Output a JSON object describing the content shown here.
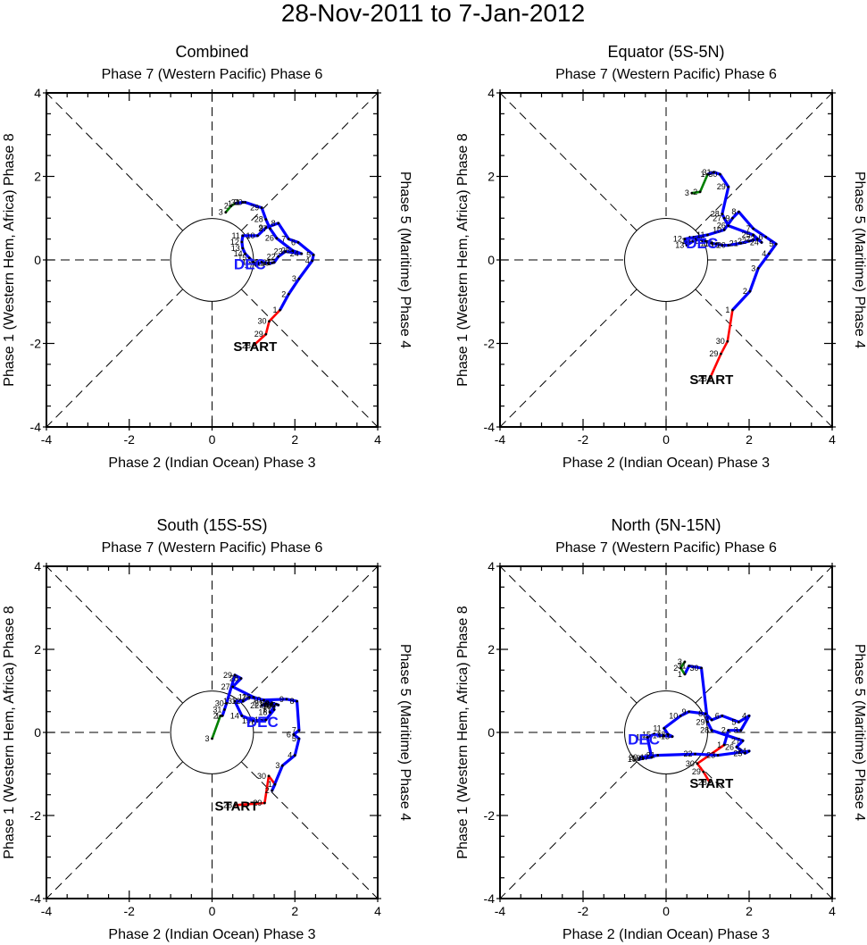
{
  "title": "28-Nov-2011 to 7-Jan-2012",
  "chart_data": [
    {
      "type": "line",
      "panel": "top-left",
      "title": "Combined",
      "top_label": "Phase 7 (Western Pacific) Phase 6",
      "bottom_label": "Phase 2 (Indian Ocean) Phase 3",
      "left_label": "Phase 1 (Western Hem, Africa) Phase 8",
      "right_label": "Phase 5 (Maritime) Phase 4",
      "xlim": [
        -4,
        4
      ],
      "ylim": [
        -4,
        4
      ],
      "xticks": [
        "-4",
        "-2",
        "0",
        "2",
        "4"
      ],
      "yticks": [
        "-4",
        "-2",
        "0",
        "2",
        "4"
      ],
      "start_label": "START",
      "month_label": "DEC",
      "series": [
        {
          "name": "Nov",
          "color": "#ff0000",
          "labels": [
            "28",
            "29",
            "30"
          ],
          "points": [
            [
              1.0,
              -2.05
            ],
            [
              1.3,
              -1.78
            ],
            [
              1.38,
              -1.47
            ]
          ]
        },
        {
          "name": "Dec",
          "color": "#0000ff",
          "labels": [
            "1",
            "2",
            "3",
            "4",
            "5",
            "6",
            "7",
            "8",
            "9",
            "10",
            "11",
            "12",
            "13",
            "14",
            "15",
            "16",
            "17",
            "18",
            "19",
            "20",
            "21",
            "22",
            "23",
            "24",
            "25",
            "26",
            "27",
            "28",
            "29",
            "30",
            "31"
          ],
          "points": [
            [
              1.64,
              -1.2
            ],
            [
              1.85,
              -0.82
            ],
            [
              2.1,
              -0.45
            ],
            [
              2.42,
              -0.02
            ],
            [
              2.45,
              0.12
            ],
            [
              2.08,
              0.42
            ],
            [
              1.85,
              0.5
            ],
            [
              1.6,
              0.88
            ],
            [
              1.3,
              0.77
            ],
            [
              1.1,
              0.58
            ],
            [
              0.74,
              0.58
            ],
            [
              0.72,
              0.43
            ],
            [
              0.74,
              0.28
            ],
            [
              0.8,
              0.15
            ],
            [
              0.9,
              0.05
            ],
            [
              1.0,
              -0.05
            ],
            [
              1.06,
              -0.13
            ],
            [
              1.2,
              -0.05
            ],
            [
              1.35,
              -0.08
            ],
            [
              1.45,
              -0.07
            ],
            [
              1.5,
              -0.06
            ],
            [
              1.6,
              0.08
            ],
            [
              1.77,
              0.2
            ],
            [
              2.16,
              0.15
            ],
            [
              1.95,
              0.22
            ],
            [
              1.56,
              0.52
            ],
            [
              1.4,
              0.75
            ],
            [
              1.3,
              0.97
            ],
            [
              1.2,
              1.25
            ],
            [
              0.8,
              1.38
            ],
            [
              0.74,
              1.38
            ]
          ]
        },
        {
          "name": "Jan",
          "color": "#008000",
          "labels": [
            "1",
            "2",
            "3"
          ],
          "points": [
            [
              0.55,
              1.35
            ],
            [
              0.46,
              1.29
            ],
            [
              0.33,
              1.14
            ]
          ]
        }
      ]
    },
    {
      "type": "line",
      "panel": "top-right",
      "title": "Equator (5S-5N)",
      "top_label": "Phase 7 (Western Pacific) Phase 6",
      "bottom_label": "Phase 2 (Indian Ocean) Phase 3",
      "left_label": "Phase 1 (Western Hem, Africa) Phase 8",
      "right_label": "Phase 5 (Maritime) Phase 4",
      "xlim": [
        -4,
        4
      ],
      "ylim": [
        -4,
        4
      ],
      "xticks": [
        "-4",
        "-2",
        "0",
        "2",
        "4"
      ],
      "yticks": [
        "-4",
        "-2",
        "0",
        "2",
        "4"
      ],
      "start_label": "START",
      "month_label": "DEC",
      "series": [
        {
          "name": "Nov",
          "color": "#ff0000",
          "labels": [
            "28",
            "29",
            "30"
          ],
          "points": [
            [
              1.05,
              -2.85
            ],
            [
              1.32,
              -2.25
            ],
            [
              1.48,
              -1.95
            ]
          ]
        },
        {
          "name": "Dec",
          "color": "#0000ff",
          "labels": [
            "1",
            "2",
            "3",
            "4",
            "5",
            "6",
            "7",
            "8",
            "9",
            "10",
            "11",
            "12",
            "13",
            "14",
            "15",
            "16",
            "17",
            "18",
            "19",
            "20",
            "21",
            "22",
            "23",
            "24",
            "25",
            "26",
            "27",
            "28",
            "29",
            "30",
            "31"
          ],
          "points": [
            [
              1.6,
              -1.2
            ],
            [
              2.02,
              -0.75
            ],
            [
              2.22,
              -0.2
            ],
            [
              2.48,
              0.15
            ],
            [
              2.65,
              0.38
            ],
            [
              2.4,
              0.55
            ],
            [
              2.1,
              0.75
            ],
            [
              1.75,
              1.15
            ],
            [
              1.6,
              1.0
            ],
            [
              1.4,
              0.72
            ],
            [
              1.0,
              0.6
            ],
            [
              0.45,
              0.5
            ],
            [
              0.5,
              0.35
            ],
            [
              0.65,
              0.45
            ],
            [
              0.8,
              0.5
            ],
            [
              0.95,
              0.45
            ],
            [
              1.1,
              0.4
            ],
            [
              1.2,
              0.38
            ],
            [
              1.35,
              0.35
            ],
            [
              1.5,
              0.35
            ],
            [
              1.8,
              0.4
            ],
            [
              2.0,
              0.45
            ],
            [
              2.2,
              0.5
            ],
            [
              2.3,
              0.42
            ],
            [
              2.1,
              0.6
            ],
            [
              1.5,
              0.82
            ],
            [
              1.4,
              1.0
            ],
            [
              1.35,
              1.1
            ],
            [
              1.5,
              1.75
            ],
            [
              1.3,
              2.05
            ],
            [
              1.15,
              2.1
            ]
          ]
        },
        {
          "name": "Jan",
          "color": "#008000",
          "labels": [
            "1",
            "2",
            "3"
          ],
          "points": [
            [
              1.0,
              2.05
            ],
            [
              0.82,
              1.63
            ],
            [
              0.62,
              1.6
            ]
          ]
        }
      ]
    },
    {
      "type": "line",
      "panel": "bottom-left",
      "title": "South (15S-5S)",
      "top_label": "Phase 7 (Western Pacific) Phase 6",
      "bottom_label": "Phase 2 (Indian Ocean) Phase 3",
      "left_label": "Phase 1 (Western Hem, Africa) Phase 8",
      "right_label": "Phase 5 (Maritime) Phase 4",
      "xlim": [
        -4,
        4
      ],
      "ylim": [
        -4,
        4
      ],
      "xticks": [
        "-4",
        "-2",
        "0",
        "2",
        "4"
      ],
      "yticks": [
        "-4",
        "-2",
        "0",
        "2",
        "4"
      ],
      "start_label": "START",
      "month_label": "DEC",
      "series": [
        {
          "name": "Nov",
          "color": "#ff0000",
          "labels": [
            "28",
            "29",
            "30"
          ],
          "points": [
            [
              0.55,
              -1.75
            ],
            [
              1.27,
              -1.7
            ],
            [
              1.37,
              -1.05
            ]
          ]
        },
        {
          "name": "Dec",
          "color": "#0000ff",
          "labels": [
            "1",
            "2",
            "3",
            "4",
            "5",
            "6",
            "7",
            "8",
            "9",
            "10",
            "11",
            "12",
            "13",
            "14",
            "15",
            "16",
            "17",
            "18",
            "19",
            "20",
            "21",
            "22",
            "23",
            "24",
            "25",
            "26",
            "27",
            "28",
            "29",
            "30",
            "31"
          ],
          "points": [
            [
              1.52,
              -1.25
            ],
            [
              1.45,
              -1.4
            ],
            [
              1.7,
              -0.8
            ],
            [
              2.0,
              -0.55
            ],
            [
              2.1,
              -0.15
            ],
            [
              1.97,
              -0.05
            ],
            [
              2.1,
              0.05
            ],
            [
              2.05,
              0.75
            ],
            [
              1.8,
              0.8
            ],
            [
              1.25,
              0.78
            ],
            [
              0.9,
              0.85
            ],
            [
              0.75,
              0.75
            ],
            [
              0.55,
              0.75
            ],
            [
              0.72,
              0.4
            ],
            [
              1.0,
              0.28
            ],
            [
              1.3,
              0.3
            ],
            [
              1.5,
              0.55
            ],
            [
              1.4,
              0.48
            ],
            [
              1.5,
              0.62
            ],
            [
              1.42,
              0.66
            ],
            [
              1.3,
              0.7
            ],
            [
              1.2,
              0.65
            ],
            [
              1.45,
              0.7
            ],
            [
              1.55,
              0.68
            ],
            [
              1.6,
              0.66
            ],
            [
              1.0,
              0.85
            ],
            [
              0.5,
              1.1
            ],
            [
              0.7,
              1.3
            ],
            [
              0.55,
              1.38
            ],
            [
              0.35,
              0.7
            ],
            [
              0.3,
              0.55
            ]
          ]
        },
        {
          "name": "Jan",
          "color": "#008000",
          "labels": [
            "1",
            "2",
            "3"
          ],
          "points": [
            [
              0.25,
              0.4
            ],
            [
              0.2,
              0.4
            ],
            [
              0.0,
              -0.15
            ]
          ]
        }
      ]
    },
    {
      "type": "line",
      "panel": "bottom-right",
      "title": "North (5N-15N)",
      "top_label": "Phase 7 (Western Pacific) Phase 6",
      "bottom_label": "Phase 2 (Indian Ocean) Phase 3",
      "left_label": "Phase 1 (Western Hem, Africa) Phase 8",
      "right_label": "Phase 5 (Maritime) Phase 4",
      "xlim": [
        -4,
        4
      ],
      "ylim": [
        -4,
        4
      ],
      "xticks": [
        "-4",
        "-2",
        "0",
        "2",
        "4"
      ],
      "yticks": [
        "-4",
        "-2",
        "0",
        "2",
        "4"
      ],
      "start_label": "START",
      "month_label": "DEC",
      "series": [
        {
          "name": "Nov",
          "color": "#ff0000",
          "labels": [
            "28",
            "29",
            "30"
          ],
          "points": [
            [
              1.05,
              -1.2
            ],
            [
              0.9,
              -0.95
            ],
            [
              0.75,
              -0.75
            ]
          ]
        },
        {
          "name": "Dec",
          "color": "#0000ff",
          "labels": [
            "1",
            "2",
            "3",
            "4",
            "5",
            "6",
            "7",
            "8",
            "9",
            "10",
            "11",
            "12",
            "13",
            "14",
            "15",
            "16",
            "17",
            "18",
            "19",
            "20",
            "21",
            "22",
            "23",
            "24",
            "25",
            "26",
            "27",
            "28",
            "29",
            "30",
            "31"
          ],
          "points": [
            [
              1.4,
              -0.3
            ],
            [
              1.5,
              0.05
            ],
            [
              1.8,
              0.05
            ],
            [
              2.0,
              0.4
            ],
            [
              1.75,
              0.25
            ],
            [
              1.35,
              0.4
            ],
            [
              1.1,
              0.3
            ],
            [
              0.95,
              0.45
            ],
            [
              0.55,
              0.5
            ],
            [
              0.35,
              0.4
            ],
            [
              -0.05,
              0.1
            ],
            [
              0.05,
              -0.05
            ],
            [
              0.15,
              -0.1
            ],
            [
              -0.05,
              -0.08
            ],
            [
              -0.3,
              -0.05
            ],
            [
              -0.45,
              -0.12
            ],
            [
              -0.35,
              -0.6
            ],
            [
              -0.55,
              -0.62
            ],
            [
              -0.65,
              -0.65
            ],
            [
              -0.62,
              -0.6
            ],
            [
              -0.2,
              -0.55
            ],
            [
              0.7,
              -0.52
            ],
            [
              1.25,
              -0.55
            ],
            [
              2.0,
              -0.45
            ],
            [
              1.9,
              -0.5
            ],
            [
              1.7,
              -0.35
            ],
            [
              1.85,
              -0.2
            ],
            [
              1.1,
              0.05
            ],
            [
              1.0,
              0.25
            ],
            [
              0.85,
              1.55
            ],
            [
              0.55,
              1.6
            ]
          ]
        },
        {
          "name": "Jan",
          "color": "#008000",
          "labels": [
            "1",
            "2",
            "3"
          ],
          "points": [
            [
              0.45,
              1.4
            ],
            [
              0.35,
              1.55
            ],
            [
              0.45,
              1.7
            ]
          ]
        }
      ]
    }
  ]
}
